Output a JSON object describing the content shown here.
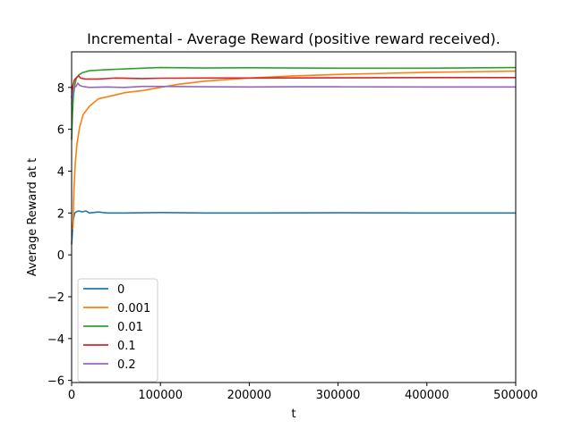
{
  "chart_data": {
    "type": "line",
    "title": "Incremental - Average Reward (positive reward received).",
    "xlabel": "t",
    "ylabel": "Average Reward at t",
    "xlim": [
      0,
      500000
    ],
    "ylim": [
      -6.1,
      9.7
    ],
    "xticks": [
      0,
      100000,
      200000,
      300000,
      400000,
      500000
    ],
    "xtick_labels": [
      "0",
      "100000",
      "200000",
      "300000",
      "400000",
      "500000"
    ],
    "yticks": [
      -6,
      -4,
      -2,
      0,
      2,
      4,
      6,
      8
    ],
    "ytick_labels": [
      "−6",
      "−4",
      "−2",
      "0",
      "2",
      "4",
      "6",
      "8"
    ],
    "grid": false,
    "legend_position": "lower-left",
    "series": [
      {
        "name": "0",
        "color": "#1f77b4",
        "points": [
          [
            0,
            0.5
          ],
          [
            1000,
            1.2
          ],
          [
            2000,
            1.7
          ],
          [
            3500,
            2.0
          ],
          [
            5000,
            2.05
          ],
          [
            8000,
            2.1
          ],
          [
            12000,
            2.05
          ],
          [
            16000,
            2.1
          ],
          [
            20000,
            2.0
          ],
          [
            30000,
            2.05
          ],
          [
            40000,
            2.0
          ],
          [
            60000,
            2.0
          ],
          [
            100000,
            2.02
          ],
          [
            150000,
            2.0
          ],
          [
            200000,
            2.0
          ],
          [
            300000,
            2.01
          ],
          [
            400000,
            2.0
          ],
          [
            500000,
            2.0
          ]
        ]
      },
      {
        "name": "0.001",
        "color": "#ff7f0e",
        "points": [
          [
            0,
            1.2
          ],
          [
            1500,
            1.3
          ],
          [
            2500,
            3.0
          ],
          [
            4000,
            4.3
          ],
          [
            6000,
            5.3
          ],
          [
            9000,
            6.1
          ],
          [
            13000,
            6.7
          ],
          [
            20000,
            7.1
          ],
          [
            30000,
            7.45
          ],
          [
            45000,
            7.6
          ],
          [
            60000,
            7.75
          ],
          [
            80000,
            7.85
          ],
          [
            100000,
            8.0
          ],
          [
            120000,
            8.15
          ],
          [
            150000,
            8.3
          ],
          [
            200000,
            8.45
          ],
          [
            250000,
            8.55
          ],
          [
            300000,
            8.62
          ],
          [
            350000,
            8.67
          ],
          [
            400000,
            8.72
          ],
          [
            450000,
            8.75
          ],
          [
            500000,
            8.78
          ]
        ]
      },
      {
        "name": "0.01",
        "color": "#2ca02c",
        "points": [
          [
            0,
            5.5
          ],
          [
            1000,
            6.8
          ],
          [
            2000,
            7.6
          ],
          [
            3500,
            8.1
          ],
          [
            5000,
            8.4
          ],
          [
            8000,
            8.6
          ],
          [
            12000,
            8.7
          ],
          [
            20000,
            8.8
          ],
          [
            40000,
            8.85
          ],
          [
            70000,
            8.9
          ],
          [
            100000,
            8.95
          ],
          [
            150000,
            8.93
          ],
          [
            200000,
            8.94
          ],
          [
            300000,
            8.92
          ],
          [
            400000,
            8.92
          ],
          [
            500000,
            8.95
          ]
        ]
      },
      {
        "name": "0.1",
        "color": "#d62728",
        "points": [
          [
            0,
            7.5
          ],
          [
            1500,
            8.1
          ],
          [
            3000,
            8.35
          ],
          [
            5000,
            8.45
          ],
          [
            8000,
            8.55
          ],
          [
            10000,
            8.45
          ],
          [
            15000,
            8.4
          ],
          [
            30000,
            8.4
          ],
          [
            50000,
            8.45
          ],
          [
            80000,
            8.42
          ],
          [
            100000,
            8.44
          ],
          [
            150000,
            8.45
          ],
          [
            200000,
            8.45
          ],
          [
            300000,
            8.46
          ],
          [
            400000,
            8.47
          ],
          [
            500000,
            8.47
          ]
        ]
      },
      {
        "name": "0.2",
        "color": "#9467bd",
        "points": [
          [
            0,
            7.2
          ],
          [
            1500,
            7.8
          ],
          [
            3000,
            8.0
          ],
          [
            5000,
            8.05
          ],
          [
            7000,
            8.2
          ],
          [
            9000,
            8.1
          ],
          [
            12000,
            8.05
          ],
          [
            20000,
            8.0
          ],
          [
            40000,
            8.02
          ],
          [
            60000,
            8.0
          ],
          [
            80000,
            8.05
          ],
          [
            100000,
            8.05
          ],
          [
            150000,
            8.03
          ],
          [
            200000,
            8.02
          ],
          [
            250000,
            8.03
          ],
          [
            300000,
            8.03
          ],
          [
            400000,
            8.02
          ],
          [
            500000,
            8.02
          ]
        ]
      }
    ]
  }
}
